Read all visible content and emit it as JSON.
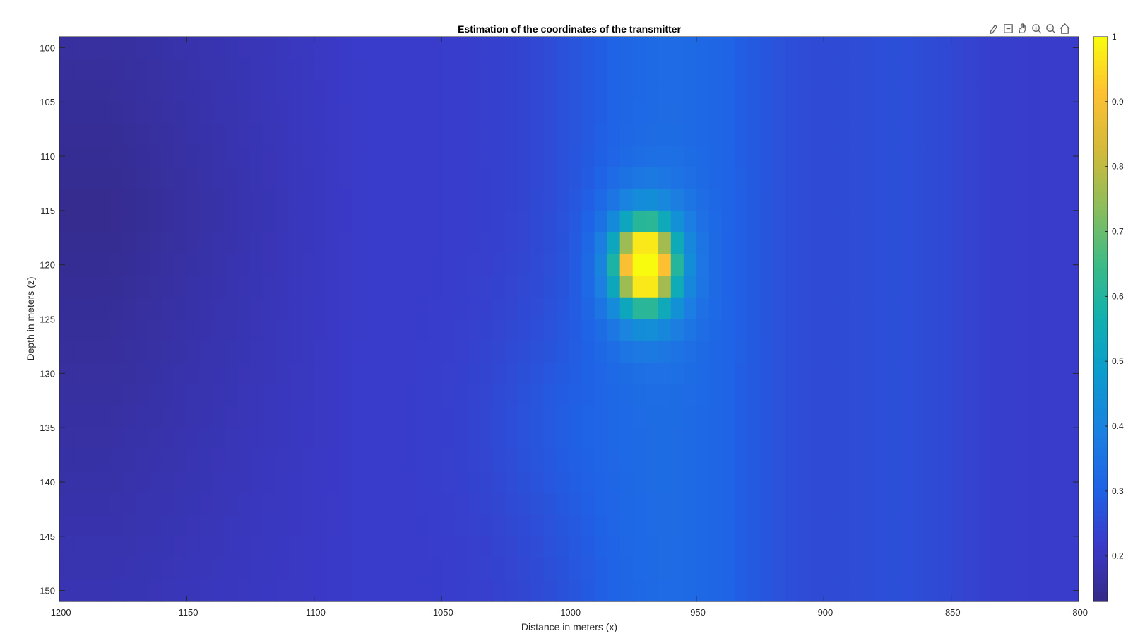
{
  "toolbar": {
    "icons": [
      "brush-data-icon",
      "datatips-icon",
      "pan-hand-icon",
      "zoom-in-icon",
      "zoom-out-icon",
      "home-restore-view-icon"
    ]
  },
  "chart_data": {
    "type": "heatmap",
    "title": "Estimation of the coordinates of the transmitter",
    "xlabel": "Distance in meters (x)",
    "ylabel": "Depth in meters (z)",
    "xlim": [
      -1200,
      -800
    ],
    "ylim": [
      99,
      151
    ],
    "y_reversed": true,
    "xticks": [
      -1200,
      -1150,
      -1100,
      -1050,
      -1000,
      -950,
      -900,
      -850,
      -800
    ],
    "yticks": [
      100,
      105,
      110,
      115,
      120,
      125,
      130,
      135,
      140,
      145,
      150
    ],
    "x_step": 5,
    "z_step": 2,
    "colormap": "parula",
    "colorbar": {
      "range": [
        0.13,
        1
      ],
      "ticks": [
        0.2,
        0.3,
        0.4,
        0.5,
        0.6,
        0.7,
        0.8,
        0.9,
        1
      ],
      "location": "right"
    },
    "peak": {
      "x": -970,
      "z": 120,
      "value": 1.0
    },
    "grid": false,
    "surface": {
      "background": 0.22,
      "left_floor": 0.14,
      "center_band": {
        "x": -960,
        "value": 0.33
      },
      "right_band": {
        "x": -870,
        "value": 0.27
      }
    }
  }
}
